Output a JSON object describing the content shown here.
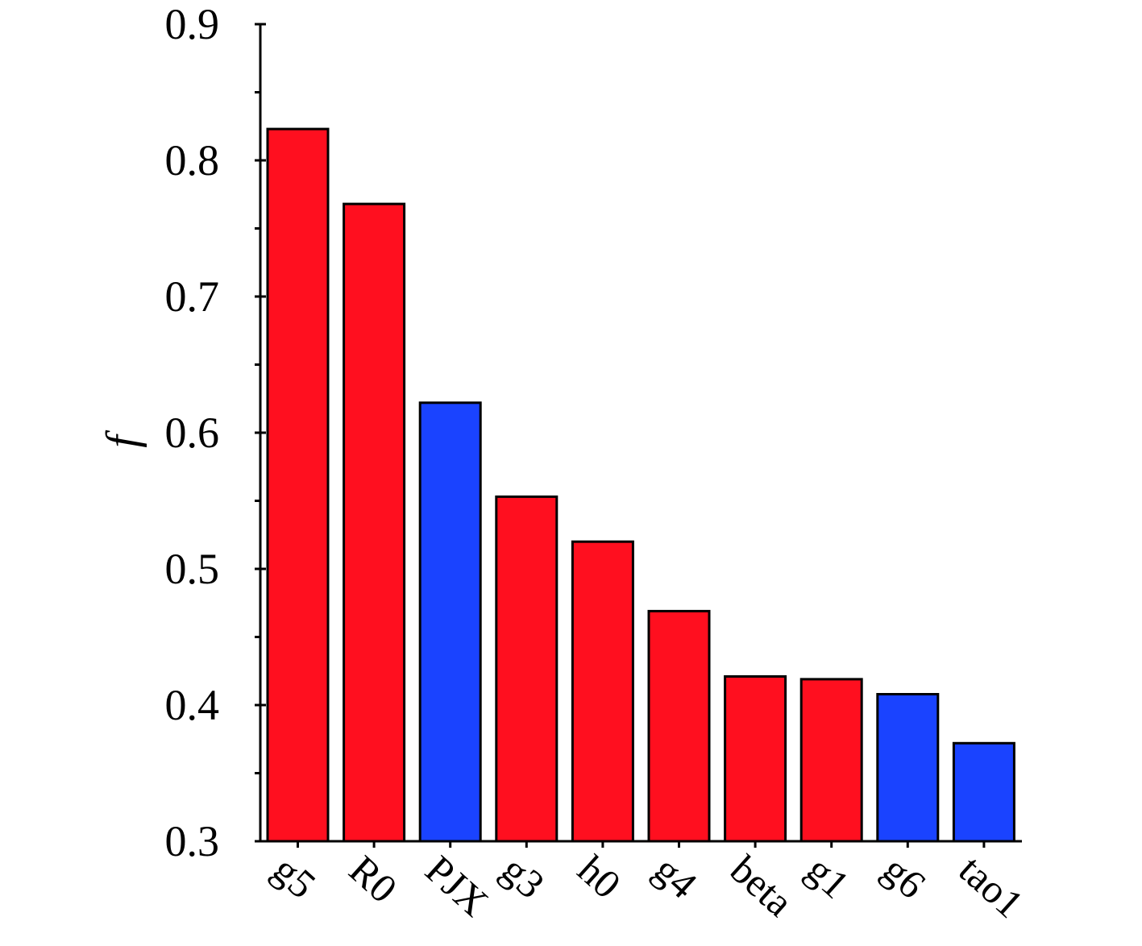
{
  "chart_data": {
    "type": "bar",
    "title": "",
    "xlabel": "",
    "ylabel": "f",
    "ylim": [
      0.3,
      0.9
    ],
    "yticks": [
      "0.3",
      "0.4",
      "0.5",
      "0.6",
      "0.7",
      "0.8",
      "0.9"
    ],
    "categories": [
      "g5",
      "R0",
      "PJX",
      "g3",
      "h0",
      "g4",
      "beta",
      "g1",
      "g6",
      "tao1"
    ],
    "values": [
      0.823,
      0.768,
      0.622,
      0.553,
      0.52,
      0.469,
      0.421,
      0.419,
      0.408,
      0.372
    ],
    "bar_colors": [
      "#ff0f1f",
      "#ff0f1f",
      "#1a43ff",
      "#ff0f1f",
      "#ff0f1f",
      "#ff0f1f",
      "#ff0f1f",
      "#ff0f1f",
      "#1a43ff",
      "#1a43ff"
    ],
    "grid": false,
    "legend": "none"
  }
}
